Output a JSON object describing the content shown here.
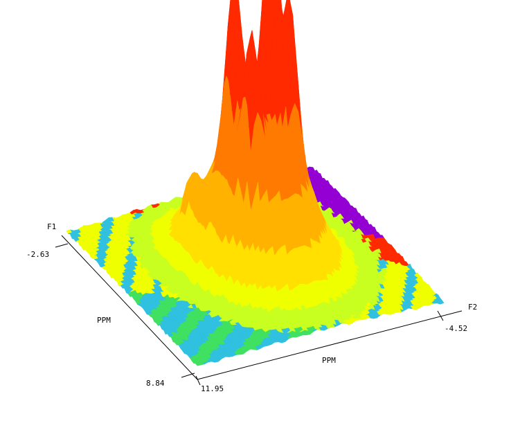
{
  "chart_data": {
    "type": "surface3d",
    "title": "",
    "axes": {
      "f1": {
        "name": "F1",
        "unit": "PPM",
        "range": [
          -2.63,
          8.84
        ],
        "start_label": "-2.63",
        "end_label": "8.84"
      },
      "f2": {
        "name": "F2",
        "unit": "PPM",
        "range": [
          11.95,
          -4.52
        ],
        "start_label": "11.95",
        "end_label": "-4.52"
      }
    },
    "peaks": [
      {
        "f1": 2.7,
        "f2": 2.3,
        "height": 1.0
      },
      {
        "f1": 2.1,
        "f2": 4.4,
        "height": 0.7
      },
      {
        "f1": 3.9,
        "f2": 2.0,
        "height": 0.62
      },
      {
        "f1": 3.8,
        "f2": 4.5,
        "height": 0.57
      },
      {
        "f1": 1.0,
        "f2": 6.4,
        "height": 0.16
      }
    ],
    "colormap": [
      "#9400d3",
      "#ff2a00",
      "#ff7a00",
      "#ffb300",
      "#ffe000",
      "#f0ff00",
      "#c8ff20",
      "#40e060",
      "#30c0e0"
    ],
    "grid": false,
    "legend": "none"
  }
}
